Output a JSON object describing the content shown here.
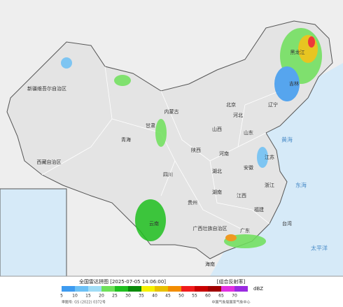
{
  "map": {
    "labels": [
      "新疆维吾尔自治区",
      "西藏自治区",
      "青海",
      "甘肃",
      "内蒙古",
      "四川",
      "云南",
      "贵州",
      "广西壮族自治区",
      "广东",
      "湖南",
      "湖北",
      "河南",
      "山东",
      "江苏",
      "安徽",
      "浙江",
      "福建",
      "江西",
      "陕西",
      "山西",
      "河北",
      "北京",
      "辽宁",
      "吉林",
      "黑龙江",
      "台湾",
      "海南",
      "太平洋",
      "东海",
      "黄海"
    ]
  },
  "legend": {
    "title": "全国雷达拼图 [2025-07-05 14:06:00]",
    "product": "[组合反射率]",
    "unit": "dBZ",
    "levels": [
      {
        "value": 5,
        "color": "#3e9bf0"
      },
      {
        "value": 10,
        "color": "#6cc0f5"
      },
      {
        "value": 15,
        "color": "#a0dcf5"
      },
      {
        "value": 20,
        "color": "#6ee05a"
      },
      {
        "value": 25,
        "color": "#1fbf1f"
      },
      {
        "value": 30,
        "color": "#0a8a0a"
      },
      {
        "value": 35,
        "color": "#f5f000"
      },
      {
        "value": 40,
        "color": "#e8c000"
      },
      {
        "value": 45,
        "color": "#f28c00"
      },
      {
        "value": 50,
        "color": "#f01c1c"
      },
      {
        "value": 55,
        "color": "#c80000"
      },
      {
        "value": 60,
        "color": "#a00000"
      },
      {
        "value": 65,
        "color": "#e030e0"
      },
      {
        "value": 70,
        "color": "#9a2be0"
      }
    ],
    "footnote": "审图号: GS (2022) 0372号",
    "source": "中国气象局国家气象中心"
  }
}
